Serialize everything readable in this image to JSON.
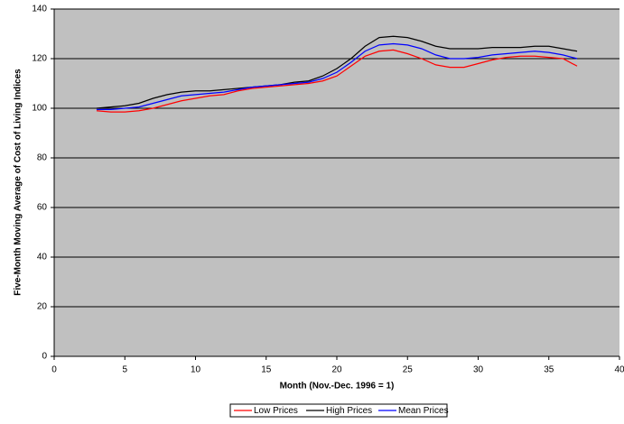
{
  "chart_data": {
    "type": "line",
    "x_label": "Month (Nov.-Dec. 1996 = 1)",
    "y_label": "Five-Month Moving Average of Cost of Living Indices",
    "x": [
      3,
      4,
      5,
      6,
      7,
      8,
      9,
      10,
      11,
      12,
      13,
      14,
      15,
      16,
      17,
      18,
      19,
      20,
      21,
      22,
      23,
      24,
      25,
      26,
      27,
      28,
      29,
      30,
      31,
      32,
      33,
      34,
      35,
      36,
      37
    ],
    "series": [
      {
        "name": "Low Prices",
        "color": "#ff0000",
        "values": [
          99,
          98.5,
          98.5,
          99,
          100,
          101.5,
          103,
          104,
          105,
          105.5,
          107,
          108,
          108.5,
          109,
          109.5,
          110,
          111,
          113,
          117,
          121,
          123,
          123.5,
          122,
          120,
          117.5,
          116.5,
          116.5,
          118,
          119.5,
          120.5,
          121,
          121,
          120.5,
          120,
          117
        ]
      },
      {
        "name": "High Prices",
        "color": "#000000",
        "values": [
          100,
          100.5,
          101,
          102,
          104,
          105.5,
          106.5,
          107,
          107,
          107.5,
          108,
          108.5,
          109,
          109.5,
          110.5,
          111,
          113,
          116,
          120,
          125,
          128.5,
          129,
          128.5,
          127,
          125,
          124,
          124,
          124,
          124.5,
          124.5,
          124.5,
          125,
          125,
          124,
          123
        ]
      },
      {
        "name": "Mean Prices",
        "color": "#0000ff",
        "values": [
          99.5,
          99.5,
          100,
          100.5,
          102,
          103.5,
          105,
          105.5,
          106,
          106.5,
          107.5,
          108.5,
          109,
          109.5,
          110,
          110.5,
          112,
          114.5,
          118.5,
          123,
          125.5,
          126,
          125.5,
          124,
          121.5,
          120,
          120,
          120.5,
          121.5,
          122,
          122.5,
          123,
          122.5,
          121.5,
          120
        ]
      }
    ],
    "xlim": [
      0,
      40
    ],
    "xticks": [
      0,
      5,
      10,
      15,
      20,
      25,
      30,
      35,
      40
    ],
    "ylim": [
      0,
      140
    ],
    "yticks": [
      0,
      20,
      40,
      60,
      80,
      100,
      120,
      140
    ],
    "grid": true,
    "legend": "bottom"
  }
}
